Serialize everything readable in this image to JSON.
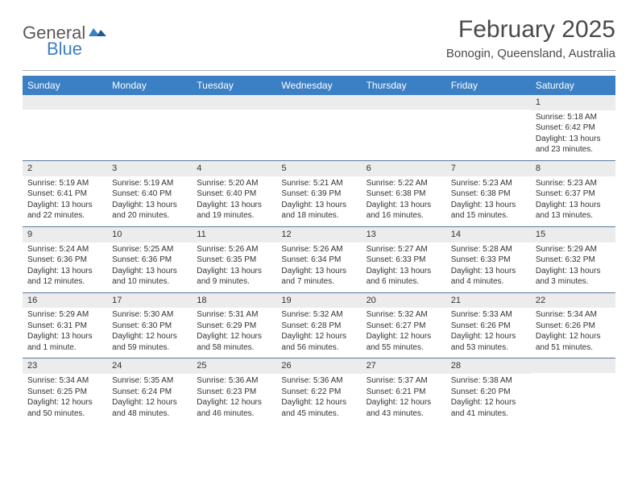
{
  "header": {
    "logo_general": "General",
    "logo_blue": "Blue",
    "month_title": "February 2025",
    "location": "Bonogin, Queensland, Australia"
  },
  "colors": {
    "header_bg": "#3b7fc4",
    "header_text": "#ffffff",
    "daynum_bg": "#ececec",
    "week_border": "#5a7a9a",
    "logo_gray": "#5a5a5a",
    "logo_blue": "#3b7fc4",
    "text": "#333333",
    "hr": "#b0b0b0"
  },
  "weekdays": [
    "Sunday",
    "Monday",
    "Tuesday",
    "Wednesday",
    "Thursday",
    "Friday",
    "Saturday"
  ],
  "weeks": [
    [
      {
        "n": "",
        "sunrise": "",
        "sunset": "",
        "daylight": ""
      },
      {
        "n": "",
        "sunrise": "",
        "sunset": "",
        "daylight": ""
      },
      {
        "n": "",
        "sunrise": "",
        "sunset": "",
        "daylight": ""
      },
      {
        "n": "",
        "sunrise": "",
        "sunset": "",
        "daylight": ""
      },
      {
        "n": "",
        "sunrise": "",
        "sunset": "",
        "daylight": ""
      },
      {
        "n": "",
        "sunrise": "",
        "sunset": "",
        "daylight": ""
      },
      {
        "n": "1",
        "sunrise": "Sunrise: 5:18 AM",
        "sunset": "Sunset: 6:42 PM",
        "daylight": "Daylight: 13 hours and 23 minutes."
      }
    ],
    [
      {
        "n": "2",
        "sunrise": "Sunrise: 5:19 AM",
        "sunset": "Sunset: 6:41 PM",
        "daylight": "Daylight: 13 hours and 22 minutes."
      },
      {
        "n": "3",
        "sunrise": "Sunrise: 5:19 AM",
        "sunset": "Sunset: 6:40 PM",
        "daylight": "Daylight: 13 hours and 20 minutes."
      },
      {
        "n": "4",
        "sunrise": "Sunrise: 5:20 AM",
        "sunset": "Sunset: 6:40 PM",
        "daylight": "Daylight: 13 hours and 19 minutes."
      },
      {
        "n": "5",
        "sunrise": "Sunrise: 5:21 AM",
        "sunset": "Sunset: 6:39 PM",
        "daylight": "Daylight: 13 hours and 18 minutes."
      },
      {
        "n": "6",
        "sunrise": "Sunrise: 5:22 AM",
        "sunset": "Sunset: 6:38 PM",
        "daylight": "Daylight: 13 hours and 16 minutes."
      },
      {
        "n": "7",
        "sunrise": "Sunrise: 5:23 AM",
        "sunset": "Sunset: 6:38 PM",
        "daylight": "Daylight: 13 hours and 15 minutes."
      },
      {
        "n": "8",
        "sunrise": "Sunrise: 5:23 AM",
        "sunset": "Sunset: 6:37 PM",
        "daylight": "Daylight: 13 hours and 13 minutes."
      }
    ],
    [
      {
        "n": "9",
        "sunrise": "Sunrise: 5:24 AM",
        "sunset": "Sunset: 6:36 PM",
        "daylight": "Daylight: 13 hours and 12 minutes."
      },
      {
        "n": "10",
        "sunrise": "Sunrise: 5:25 AM",
        "sunset": "Sunset: 6:36 PM",
        "daylight": "Daylight: 13 hours and 10 minutes."
      },
      {
        "n": "11",
        "sunrise": "Sunrise: 5:26 AM",
        "sunset": "Sunset: 6:35 PM",
        "daylight": "Daylight: 13 hours and 9 minutes."
      },
      {
        "n": "12",
        "sunrise": "Sunrise: 5:26 AM",
        "sunset": "Sunset: 6:34 PM",
        "daylight": "Daylight: 13 hours and 7 minutes."
      },
      {
        "n": "13",
        "sunrise": "Sunrise: 5:27 AM",
        "sunset": "Sunset: 6:33 PM",
        "daylight": "Daylight: 13 hours and 6 minutes."
      },
      {
        "n": "14",
        "sunrise": "Sunrise: 5:28 AM",
        "sunset": "Sunset: 6:33 PM",
        "daylight": "Daylight: 13 hours and 4 minutes."
      },
      {
        "n": "15",
        "sunrise": "Sunrise: 5:29 AM",
        "sunset": "Sunset: 6:32 PM",
        "daylight": "Daylight: 13 hours and 3 minutes."
      }
    ],
    [
      {
        "n": "16",
        "sunrise": "Sunrise: 5:29 AM",
        "sunset": "Sunset: 6:31 PM",
        "daylight": "Daylight: 13 hours and 1 minute."
      },
      {
        "n": "17",
        "sunrise": "Sunrise: 5:30 AM",
        "sunset": "Sunset: 6:30 PM",
        "daylight": "Daylight: 12 hours and 59 minutes."
      },
      {
        "n": "18",
        "sunrise": "Sunrise: 5:31 AM",
        "sunset": "Sunset: 6:29 PM",
        "daylight": "Daylight: 12 hours and 58 minutes."
      },
      {
        "n": "19",
        "sunrise": "Sunrise: 5:32 AM",
        "sunset": "Sunset: 6:28 PM",
        "daylight": "Daylight: 12 hours and 56 minutes."
      },
      {
        "n": "20",
        "sunrise": "Sunrise: 5:32 AM",
        "sunset": "Sunset: 6:27 PM",
        "daylight": "Daylight: 12 hours and 55 minutes."
      },
      {
        "n": "21",
        "sunrise": "Sunrise: 5:33 AM",
        "sunset": "Sunset: 6:26 PM",
        "daylight": "Daylight: 12 hours and 53 minutes."
      },
      {
        "n": "22",
        "sunrise": "Sunrise: 5:34 AM",
        "sunset": "Sunset: 6:26 PM",
        "daylight": "Daylight: 12 hours and 51 minutes."
      }
    ],
    [
      {
        "n": "23",
        "sunrise": "Sunrise: 5:34 AM",
        "sunset": "Sunset: 6:25 PM",
        "daylight": "Daylight: 12 hours and 50 minutes."
      },
      {
        "n": "24",
        "sunrise": "Sunrise: 5:35 AM",
        "sunset": "Sunset: 6:24 PM",
        "daylight": "Daylight: 12 hours and 48 minutes."
      },
      {
        "n": "25",
        "sunrise": "Sunrise: 5:36 AM",
        "sunset": "Sunset: 6:23 PM",
        "daylight": "Daylight: 12 hours and 46 minutes."
      },
      {
        "n": "26",
        "sunrise": "Sunrise: 5:36 AM",
        "sunset": "Sunset: 6:22 PM",
        "daylight": "Daylight: 12 hours and 45 minutes."
      },
      {
        "n": "27",
        "sunrise": "Sunrise: 5:37 AM",
        "sunset": "Sunset: 6:21 PM",
        "daylight": "Daylight: 12 hours and 43 minutes."
      },
      {
        "n": "28",
        "sunrise": "Sunrise: 5:38 AM",
        "sunset": "Sunset: 6:20 PM",
        "daylight": "Daylight: 12 hours and 41 minutes."
      },
      {
        "n": "",
        "sunrise": "",
        "sunset": "",
        "daylight": ""
      }
    ]
  ]
}
